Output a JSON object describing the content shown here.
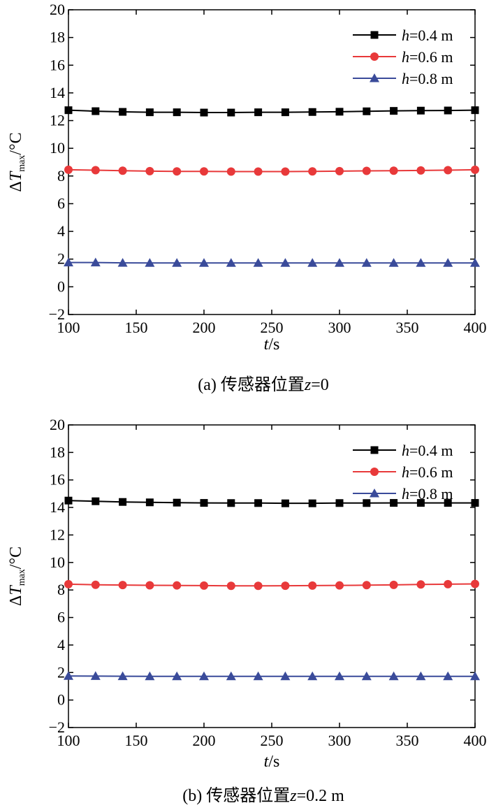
{
  "chart_data": [
    {
      "type": "line",
      "caption_prefix": "(a) 传感器位置",
      "caption_var": "z",
      "caption_suffix": "=0",
      "xlabel_var": "t",
      "xlabel_unit": "/s",
      "ylabel_main": "ΔT",
      "ylabel_sub": "max",
      "ylabel_unit": "/°C",
      "xlim": [
        100,
        400
      ],
      "ylim": [
        -2,
        20
      ],
      "xticks": [
        100,
        150,
        200,
        250,
        300,
        350,
        400
      ],
      "yticks": [
        -2,
        0,
        2,
        4,
        6,
        8,
        10,
        12,
        14,
        16,
        18,
        20
      ],
      "x": [
        100,
        120,
        140,
        160,
        180,
        200,
        220,
        240,
        260,
        280,
        300,
        320,
        340,
        360,
        380,
        400
      ],
      "series": [
        {
          "name_var": "h",
          "name_rest": "=0.4 m",
          "marker": "square",
          "color": "#000000",
          "values": [
            12.75,
            12.68,
            12.63,
            12.6,
            12.6,
            12.58,
            12.58,
            12.6,
            12.6,
            12.62,
            12.64,
            12.67,
            12.7,
            12.72,
            12.73,
            12.75
          ]
        },
        {
          "name_var": "h",
          "name_rest": "=0.6 m",
          "marker": "circle",
          "color": "#e8393a",
          "values": [
            8.45,
            8.42,
            8.38,
            8.35,
            8.33,
            8.33,
            8.32,
            8.32,
            8.32,
            8.33,
            8.35,
            8.37,
            8.38,
            8.4,
            8.42,
            8.45
          ]
        },
        {
          "name_var": "h",
          "name_rest": "=0.8 m",
          "marker": "triangle",
          "color": "#3a4b9a",
          "values": [
            1.75,
            1.75,
            1.73,
            1.72,
            1.72,
            1.72,
            1.72,
            1.72,
            1.72,
            1.72,
            1.72,
            1.72,
            1.72,
            1.72,
            1.72,
            1.72
          ]
        }
      ]
    },
    {
      "type": "line",
      "caption_prefix": "(b) 传感器位置",
      "caption_var": "z",
      "caption_suffix": "=0.2 m",
      "xlabel_var": "t",
      "xlabel_unit": "/s",
      "ylabel_main": "ΔT",
      "ylabel_sub": "max",
      "ylabel_unit": "/°C",
      "xlim": [
        100,
        400
      ],
      "ylim": [
        -2,
        20
      ],
      "xticks": [
        100,
        150,
        200,
        250,
        300,
        350,
        400
      ],
      "yticks": [
        -2,
        0,
        2,
        4,
        6,
        8,
        10,
        12,
        14,
        16,
        18,
        20
      ],
      "x": [
        100,
        120,
        140,
        160,
        180,
        200,
        220,
        240,
        260,
        280,
        300,
        320,
        340,
        360,
        380,
        400
      ],
      "series": [
        {
          "name_var": "h",
          "name_rest": "=0.4 m",
          "marker": "square",
          "color": "#000000",
          "values": [
            14.5,
            14.45,
            14.4,
            14.37,
            14.35,
            14.33,
            14.32,
            14.32,
            14.3,
            14.3,
            14.32,
            14.32,
            14.33,
            14.33,
            14.33,
            14.33
          ]
        },
        {
          "name_var": "h",
          "name_rest": "=0.6 m",
          "marker": "circle",
          "color": "#e8393a",
          "values": [
            8.42,
            8.38,
            8.36,
            8.34,
            8.33,
            8.32,
            8.3,
            8.3,
            8.31,
            8.32,
            8.33,
            8.35,
            8.37,
            8.4,
            8.42,
            8.44
          ]
        },
        {
          "name_var": "h",
          "name_rest": "=0.8 m",
          "marker": "triangle",
          "color": "#3a4b9a",
          "values": [
            1.75,
            1.74,
            1.73,
            1.72,
            1.72,
            1.72,
            1.72,
            1.72,
            1.72,
            1.72,
            1.72,
            1.72,
            1.72,
            1.72,
            1.72,
            1.72
          ]
        }
      ]
    }
  ]
}
